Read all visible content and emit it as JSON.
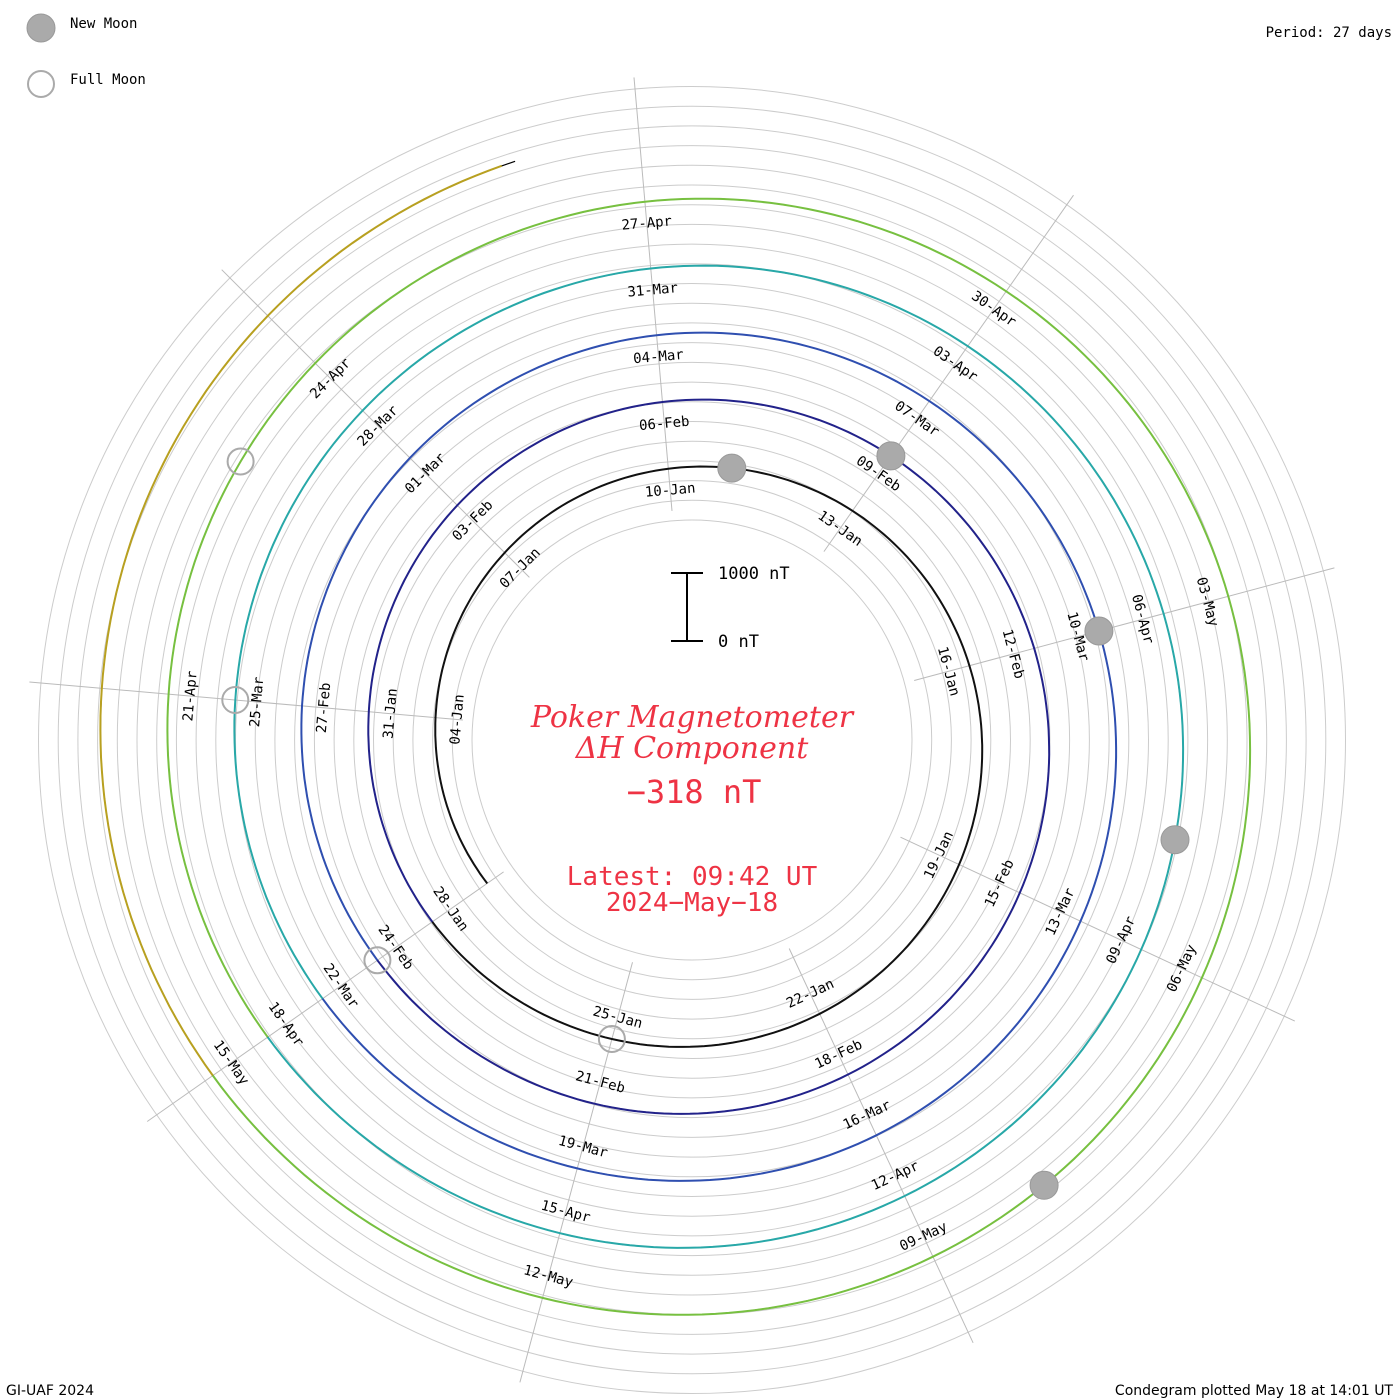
{
  "header": {
    "period_label": "Period: 27 days"
  },
  "legend": {
    "new_moon_label": "New Moon",
    "full_moon_label": "Full Moon",
    "new_moon_color": "#aaaaaa",
    "full_moon_color": "#aaaaaa"
  },
  "center": {
    "title_line1": "Poker Magnetometer",
    "title_line2": "ΔH Component",
    "value": "−318 nT",
    "latest_time": "Latest: 09:42 UT",
    "latest_date": "2024−May−18",
    "text_color": "#ee3344"
  },
  "scale_bar": {
    "top_label": "1000 nT",
    "bottom_label": "0 nT"
  },
  "footer": {
    "left": "GI-UAF 2024",
    "right": "Condegram plotted May 18 at 14:01 UT"
  },
  "chart_data": {
    "type": "line",
    "title": "Poker Magnetometer ΔH Component",
    "units": "nT",
    "period_days": 27,
    "start_date": "2024-01-01",
    "latest": "2024-05-18 09:42 UT",
    "latest_value": -318,
    "scale_bar_nT": [
      0,
      1000
    ],
    "ring_colors": [
      "#111111",
      "#22228a",
      "#2f4fb0",
      "#28a8a8",
      "#77c040",
      "#b8a020",
      "#c07010",
      "#c03010"
    ],
    "date_labels": [
      [
        "04-Jan",
        "07-Jan",
        "10-Jan",
        "13-Jan",
        "16-Jan",
        "19-Jan",
        "22-Jan",
        "25-Jan",
        "28-Jan"
      ],
      [
        "31-Jan",
        "03-Feb",
        "06-Feb",
        "09-Feb",
        "12-Feb",
        "15-Feb",
        "18-Feb",
        "21-Feb",
        "24-Feb"
      ],
      [
        "27-Feb",
        "01-Mar",
        "04-Mar",
        "07-Mar",
        "10-Mar",
        "13-Mar",
        "16-Mar",
        "19-Mar",
        "22-Mar"
      ],
      [
        "25-Mar",
        "28-Mar",
        "31-Mar",
        "03-Apr",
        "06-Apr",
        "09-Apr",
        "12-Apr",
        "15-Apr",
        "18-Apr"
      ],
      [
        "21-Apr",
        "24-Apr",
        "27-Apr",
        "30-Apr",
        "03-May",
        "06-May",
        "09-May",
        "12-May",
        "15-May"
      ]
    ],
    "new_moons": [
      "2024-01-11",
      "2024-02-09",
      "2024-03-10",
      "2024-04-08",
      "2024-05-08"
    ],
    "full_moons": [
      "2024-01-25",
      "2024-02-24",
      "2024-03-25",
      "2024-04-23"
    ],
    "series": [
      {
        "values": [
          0,
          0,
          0,
          0,
          0,
          0,
          0,
          0,
          0,
          0,
          0,
          0,
          0,
          0,
          0,
          0,
          0,
          0,
          0,
          0,
          0,
          0,
          0,
          0,
          0,
          0,
          0
        ]
      },
      {
        "values": [
          0,
          0,
          0,
          0,
          0,
          0,
          0,
          0,
          0,
          0,
          0,
          0,
          0,
          0,
          0,
          0,
          0,
          0,
          0,
          0,
          0,
          0,
          0,
          0,
          0,
          0,
          0
        ]
      },
      {
        "values": [
          0,
          0,
          0,
          0,
          0,
          0,
          0,
          0,
          0,
          0,
          0,
          0,
          0,
          0,
          0,
          0,
          0,
          0,
          0,
          0,
          0,
          0,
          0,
          0,
          0,
          0,
          0
        ]
      },
      {
        "values": [
          0,
          0,
          0,
          0,
          0,
          0,
          0,
          0,
          0,
          0,
          0,
          0,
          0,
          0,
          0,
          0,
          0,
          0,
          0,
          0,
          0,
          0,
          0,
          0,
          0,
          0,
          0
        ]
      },
      {
        "values": [
          0,
          0,
          0,
          0,
          0,
          0,
          0,
          0,
          0,
          0,
          0,
          0,
          0,
          0,
          0,
          0,
          0,
          0,
          0,
          0,
          0,
          0,
          0,
          0,
          0,
          0,
          0
        ]
      },
      {
        "values": [
          0,
          0,
          0,
          0,
          0,
          0,
          0,
          0,
          0,
          0,
          0,
          0,
          0,
          0,
          0,
          0,
          0,
          0,
          0,
          0,
          0,
          0,
          0,
          0,
          0,
          0,
          0
        ]
      }
    ]
  }
}
